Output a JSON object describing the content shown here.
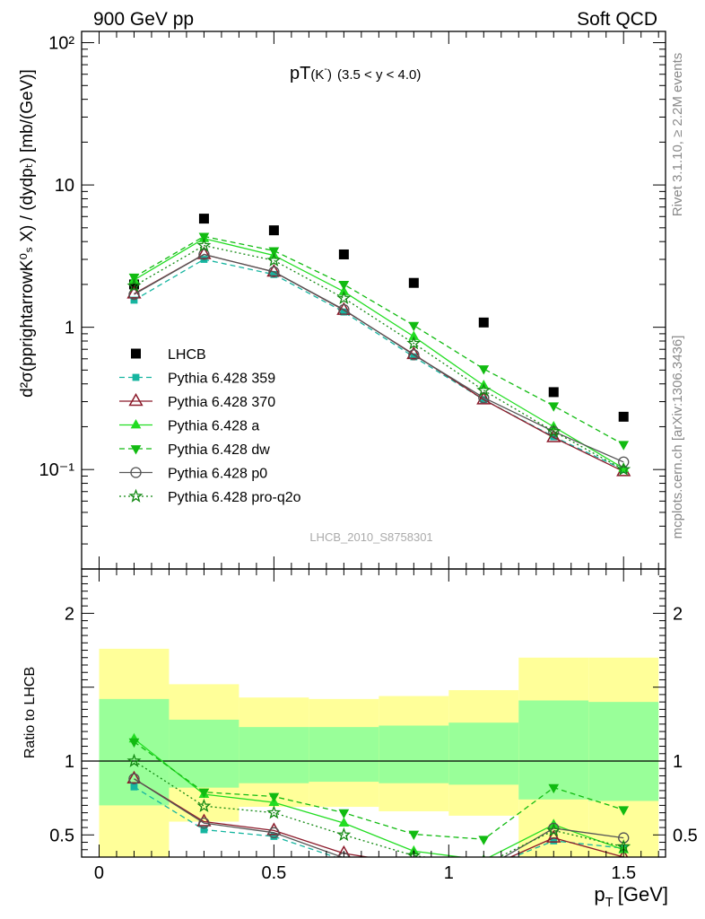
{
  "header": {
    "left": "900 GeV pp",
    "right": "Soft QCD"
  },
  "side_text": {
    "top": "Rivet 3.1.10, ≥ 2.2M events",
    "bottom": "mcplots.cern.ch [arXiv:1306.3436]"
  },
  "watermark": "LHCB_2010_S8758301",
  "colors": {
    "lhcb": "#000000",
    "p359": "#16b5a0",
    "p370": "#8b1a2a",
    "pa": "#22dd22",
    "pdw": "#11bb11",
    "pp0": "#555555",
    "pq2o": "#118811",
    "band_inner": "#99ff99",
    "band_outer": "#ffff99"
  },
  "chart_data": [
    {
      "type": "scatter",
      "title_main": "pT",
      "title_sub": "(K",
      "title_sup": "-",
      "title_close": ")",
      "title_range": "(3.5 < y < 4.0)",
      "ylabel": "d²σ(pprightarrowK⁰ₛ X) / (dydpₜ) [mb/(GeV)]",
      "yscale": "log",
      "ylim": [
        0.02,
        120
      ],
      "xlim": [
        -0.05,
        1.62
      ],
      "yticks": [
        "10⁻¹",
        "1",
        "10",
        "10²"
      ],
      "x": [
        0.1,
        0.3,
        0.5,
        0.7,
        0.9,
        1.1,
        1.3,
        1.5
      ],
      "series": [
        {
          "name": "LHCB",
          "key": "lhcb",
          "marker": "square",
          "line": "none",
          "values": [
            2.0,
            5.8,
            4.8,
            3.25,
            2.05,
            1.08,
            0.35,
            0.235
          ]
        },
        {
          "name": "Pythia 6.428 359",
          "key": "p359",
          "marker": "small-square",
          "line": "dashed",
          "values": [
            1.55,
            3.0,
            2.35,
            1.28,
            0.62,
            0.31,
            0.17,
            0.1
          ]
        },
        {
          "name": "Pythia 6.428 370",
          "key": "p370",
          "marker": "open-triangle",
          "line": "solid",
          "values": [
            1.72,
            3.25,
            2.45,
            1.32,
            0.645,
            0.31,
            0.168,
            0.097
          ]
        },
        {
          "name": "Pythia 6.428 a",
          "key": "pa",
          "marker": "triangle-up",
          "line": "solid",
          "values": [
            2.15,
            4.2,
            3.2,
            1.78,
            0.86,
            0.39,
            0.2,
            0.102
          ]
        },
        {
          "name": "Pythia 6.428 dw",
          "key": "pdw",
          "marker": "triangle-down",
          "line": "dashed",
          "values": [
            2.25,
            4.35,
            3.45,
            2.0,
            1.03,
            0.51,
            0.28,
            0.15
          ]
        },
        {
          "name": "Pythia 6.428 p0",
          "key": "pp0",
          "marker": "open-circle",
          "line": "solid",
          "values": [
            1.7,
            3.25,
            2.45,
            1.33,
            0.64,
            0.32,
            0.185,
            0.113
          ]
        },
        {
          "name": "Pythia 6.428 pro-q2o",
          "key": "pq2o",
          "marker": "open-star",
          "line": "dotted",
          "values": [
            1.95,
            3.75,
            2.95,
            1.6,
            0.77,
            0.36,
            0.185,
            0.1
          ]
        }
      ]
    },
    {
      "type": "line",
      "ylabel": "Ratio to LHCB",
      "xlabel_main": "p",
      "xlabel_sub": "T",
      "xlabel_unit": "[GeV]",
      "ylim": [
        0.35,
        2.3
      ],
      "yticks": [
        "0.5",
        "1",
        "2"
      ],
      "xticks": [
        "0",
        "0.5",
        "1",
        "1.5"
      ],
      "bands": [
        {
          "xmin": 0.0,
          "xmax": 0.2,
          "inner": [
            0.7,
            1.42
          ],
          "outer": [
            0.35,
            1.76
          ]
        },
        {
          "xmin": 0.2,
          "xmax": 0.4,
          "inner": [
            0.82,
            1.28
          ],
          "outer": [
            0.59,
            1.52
          ]
        },
        {
          "xmin": 0.4,
          "xmax": 0.6,
          "inner": [
            0.85,
            1.23
          ],
          "outer": [
            0.69,
            1.43
          ]
        },
        {
          "xmin": 0.6,
          "xmax": 0.8,
          "inner": [
            0.86,
            1.23
          ],
          "outer": [
            0.69,
            1.42
          ]
        },
        {
          "xmin": 0.8,
          "xmax": 1.0,
          "inner": [
            0.85,
            1.24
          ],
          "outer": [
            0.66,
            1.44
          ]
        },
        {
          "xmin": 1.0,
          "xmax": 1.2,
          "inner": [
            0.84,
            1.26
          ],
          "outer": [
            0.63,
            1.48
          ]
        },
        {
          "xmin": 1.2,
          "xmax": 1.4,
          "inner": [
            0.74,
            1.41
          ],
          "outer": [
            0.35,
            1.7
          ]
        },
        {
          "xmin": 1.4,
          "xmax": 1.6,
          "inner": [
            0.73,
            1.4
          ],
          "outer": [
            0.35,
            1.7
          ]
        }
      ],
      "series": [
        {
          "name": "Pythia 6.428 359",
          "key": "p359",
          "marker": "small-square",
          "line": "dashed",
          "values": [
            0.825,
            0.535,
            0.49,
            0.33,
            0.3,
            0.27,
            0.46,
            0.41
          ]
        },
        {
          "name": "Pythia 6.428 370",
          "key": "p370",
          "marker": "open-triangle",
          "line": "solid",
          "values": [
            0.88,
            0.59,
            0.53,
            0.375,
            0.3,
            0.27,
            0.48,
            0.35
          ]
        },
        {
          "name": "Pythia 6.428 a",
          "key": "pa",
          "marker": "triangle-up",
          "line": "solid",
          "values": [
            1.15,
            0.775,
            0.72,
            0.58,
            0.39,
            0.33,
            0.57,
            0.4
          ]
        },
        {
          "name": "Pythia 6.428 dw",
          "key": "pdw",
          "marker": "triangle-down",
          "line": "dashed",
          "values": [
            1.13,
            0.79,
            0.76,
            0.65,
            0.505,
            0.47,
            0.82,
            0.67
          ]
        },
        {
          "name": "Pythia 6.428 p0",
          "key": "pp0",
          "marker": "open-circle",
          "line": "solid",
          "values": [
            0.88,
            0.58,
            0.515,
            0.345,
            0.3,
            0.27,
            0.545,
            0.48
          ]
        },
        {
          "name": "Pythia 6.428 pro-q2o",
          "key": "pq2o",
          "marker": "open-star",
          "line": "dotted",
          "values": [
            1.0,
            0.695,
            0.65,
            0.5,
            0.36,
            0.3,
            0.53,
            0.42
          ]
        }
      ]
    }
  ]
}
